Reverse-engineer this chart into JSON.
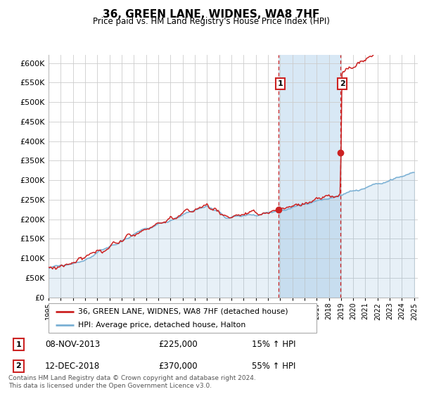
{
  "title": "36, GREEN LANE, WIDNES, WA8 7HF",
  "subtitle": "Price paid vs. HM Land Registry's House Price Index (HPI)",
  "ylim": [
    0,
    620000
  ],
  "yticks": [
    0,
    50000,
    100000,
    150000,
    200000,
    250000,
    300000,
    350000,
    400000,
    450000,
    500000,
    550000,
    600000
  ],
  "xlim_start": 1995.0,
  "xlim_end": 2025.3,
  "sale1_date": 2013.87,
  "sale1_price": 225000,
  "sale2_date": 2018.95,
  "sale2_price": 370000,
  "legend_line1": "36, GREEN LANE, WIDNES, WA8 7HF (detached house)",
  "legend_line2": "HPI: Average price, detached house, Halton",
  "ann1_date": "08-NOV-2013",
  "ann1_price": "£225,000",
  "ann1_hpi": "15% ↑ HPI",
  "ann2_date": "12-DEC-2018",
  "ann2_price": "£370,000",
  "ann2_hpi": "55% ↑ HPI",
  "footer": "Contains HM Land Registry data © Crown copyright and database right 2024.\nThis data is licensed under the Open Government Licence v3.0.",
  "red_color": "#cc2222",
  "blue_color": "#7ab0d4",
  "shading_color": "#d8e8f5",
  "box_edge_color": "#cc2222"
}
